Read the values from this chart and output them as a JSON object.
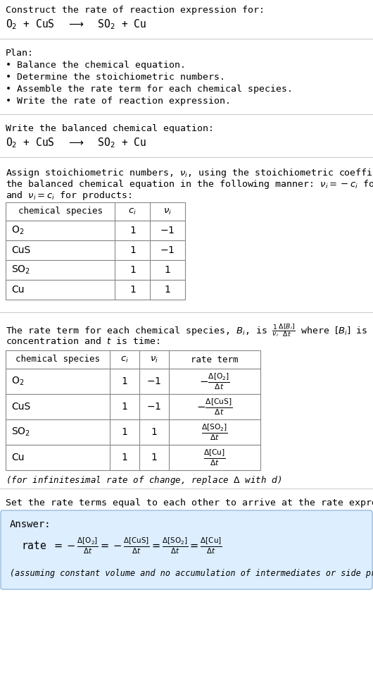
{
  "title_line1": "Construct the rate of reaction expression for:",
  "plan_header": "Plan:",
  "plan_items": [
    "• Balance the chemical equation.",
    "• Determine the stoichiometric numbers.",
    "• Assemble the rate term for each chemical species.",
    "• Write the rate of reaction expression."
  ],
  "balanced_header": "Write the balanced chemical equation:",
  "table1_headers": [
    "chemical species",
    "c_i",
    "v_i"
  ],
  "table1_rows": [
    [
      "O_2",
      "1",
      "-1"
    ],
    [
      "CuS",
      "1",
      "-1"
    ],
    [
      "SO_2",
      "1",
      "1"
    ],
    [
      "Cu",
      "1",
      "1"
    ]
  ],
  "table2_headers": [
    "chemical species",
    "c_i",
    "v_i",
    "rate term"
  ],
  "table2_rows": [
    [
      "O_2",
      "1",
      "-1",
      "neg_O2"
    ],
    [
      "CuS",
      "1",
      "-1",
      "neg_CuS"
    ],
    [
      "SO_2",
      "1",
      "1",
      "pos_SO2"
    ],
    [
      "Cu",
      "1",
      "1",
      "pos_Cu"
    ]
  ],
  "set_rate_text": "Set the rate terms equal to each other to arrive at the rate expression:",
  "answer_note": "(assuming constant volume and no accumulation of intermediates or side products)",
  "bg_color": "#ffffff",
  "text_color": "#000000",
  "sep_color": "#cccccc",
  "table_color": "#888888",
  "answer_bg": "#ddeeff",
  "answer_border": "#99bbdd"
}
